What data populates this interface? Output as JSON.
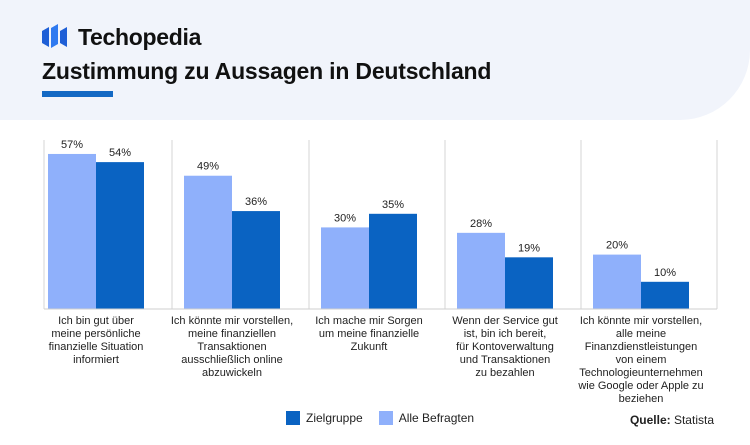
{
  "brand": {
    "name": "Techopedia"
  },
  "title": "Zustimmung zu Aussagen in Deutschland",
  "source": {
    "label": "Quelle:",
    "value": "Statista"
  },
  "colors": {
    "zielgruppe": "#0a63c2",
    "alle": "#8fb0fb",
    "accent": "#1469c4"
  },
  "chart_data": {
    "type": "bar",
    "categories": [
      [
        "Ich bin gut über",
        "meine persönliche",
        "finanzielle Situation",
        "informiert"
      ],
      [
        "Ich könnte mir vorstellen,",
        "meine finanziellen",
        "Transaktionen",
        "ausschließlich online",
        "abzuwickeln"
      ],
      [
        "Ich mache mir Sorgen",
        "um meine finanzielle",
        "Zukunft"
      ],
      [
        "Wenn der Service gut",
        "ist, bin ich bereit,",
        "für Kontoverwaltung",
        "und Transaktionen",
        "zu bezahlen"
      ],
      [
        "Ich könnte mir vorstellen,",
        "alle meine",
        "Finanzdienstleistungen",
        "von einem",
        "Technologieunternehmen",
        "wie Google oder Apple zu",
        "beziehen"
      ]
    ],
    "series": [
      {
        "name": "Alle Befragten",
        "values": [
          57,
          49,
          30,
          28,
          20
        ],
        "labels": [
          "57%",
          "49%",
          "30%",
          "28%",
          "20%"
        ],
        "color": "#8fb0fb"
      },
      {
        "name": "Zielgruppe",
        "values": [
          54,
          36,
          35,
          19,
          10
        ],
        "labels": [
          "54%",
          "36%",
          "35%",
          "19%",
          "10%"
        ],
        "color": "#0a63c2"
      }
    ],
    "legend": [
      {
        "name": "Zielgruppe",
        "color": "#0a63c2"
      },
      {
        "name": "Alle Befragten",
        "color": "#8fb0fb"
      }
    ],
    "ylim": [
      0,
      60
    ],
    "grid": false,
    "legend_position": "bottom-center"
  }
}
